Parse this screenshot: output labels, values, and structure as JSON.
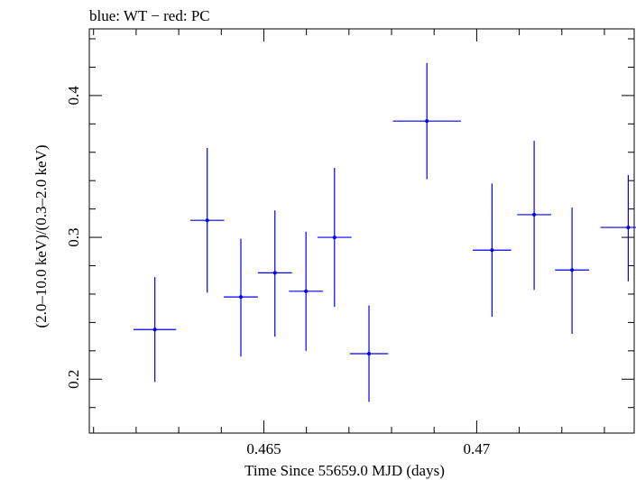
{
  "chart_data": {
    "type": "scatter",
    "title": "blue: WT − red: PC",
    "xlabel": "Time Since 55659.0 MJD (days)",
    "ylabel": "(2.0–10.0 keV)/(0.3–2.0 keV)",
    "xlim": [
      0.4609,
      0.4737
    ],
    "ylim": [
      0.162,
      0.447
    ],
    "x_ticks": [
      {
        "value": 0.465,
        "label": "0.465"
      },
      {
        "value": 0.47,
        "label": "0.47"
      }
    ],
    "y_ticks": [
      {
        "value": 0.2,
        "label": "0.2"
      },
      {
        "value": 0.3,
        "label": "0.3"
      },
      {
        "value": 0.4,
        "label": "0.4"
      }
    ],
    "grid": false,
    "legend": "none",
    "series": [
      {
        "color": "#0000ee",
        "points": [
          {
            "x": 0.46244,
            "y": 0.235,
            "xerr": 0.0005,
            "yerr_low": 0.037,
            "yerr_high": 0.037
          },
          {
            "x": 0.46367,
            "y": 0.312,
            "xerr": 0.0004,
            "yerr_low": 0.051,
            "yerr_high": 0.051
          },
          {
            "x": 0.46446,
            "y": 0.258,
            "xerr": 0.0004,
            "yerr_low": 0.042,
            "yerr_high": 0.041
          },
          {
            "x": 0.46526,
            "y": 0.275,
            "xerr": 0.0004,
            "yerr_low": 0.045,
            "yerr_high": 0.044
          },
          {
            "x": 0.46599,
            "y": 0.262,
            "xerr": 0.0004,
            "yerr_low": 0.042,
            "yerr_high": 0.042
          },
          {
            "x": 0.46666,
            "y": 0.3,
            "xerr": 0.0004,
            "yerr_low": 0.049,
            "yerr_high": 0.049
          },
          {
            "x": 0.46747,
            "y": 0.218,
            "xerr": 0.00045,
            "yerr_low": 0.034,
            "yerr_high": 0.034
          },
          {
            "x": 0.46883,
            "y": 0.382,
            "xerr": 0.0008,
            "yerr_low": 0.041,
            "yerr_high": 0.041
          },
          {
            "x": 0.47036,
            "y": 0.291,
            "xerr": 0.00045,
            "yerr_low": 0.047,
            "yerr_high": 0.047
          },
          {
            "x": 0.47135,
            "y": 0.316,
            "xerr": 0.0004,
            "yerr_low": 0.053,
            "yerr_high": 0.052
          },
          {
            "x": 0.47224,
            "y": 0.277,
            "xerr": 0.0004,
            "yerr_low": 0.045,
            "yerr_high": 0.044
          },
          {
            "x": 0.47356,
            "y": 0.307,
            "xerr": 0.00065,
            "yerr_low": 0.038,
            "yerr_high": 0.037
          }
        ]
      }
    ]
  }
}
